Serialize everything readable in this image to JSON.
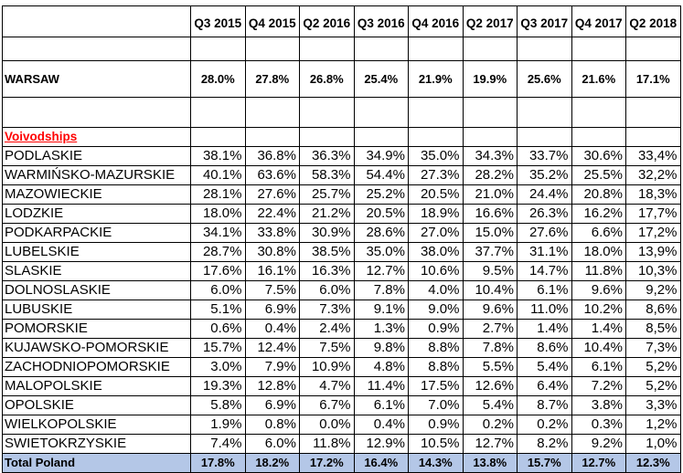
{
  "columns": [
    "Q3 2015",
    "Q4 2015",
    "Q2 2016",
    "Q3 2016",
    "Q4 2016",
    "Q2 2017",
    "Q3 2017",
    "Q4 2017",
    "Q2 2018"
  ],
  "warsaw": {
    "label": "WARSAW",
    "values": [
      "28.0%",
      "27.8%",
      "26.8%",
      "25.4%",
      "21.9%",
      "19.9%",
      "25.6%",
      "21.6%",
      "17.1%"
    ]
  },
  "voivodships_label": "Voivodships",
  "rows": [
    {
      "name": "PODLASKIE",
      "values": [
        "38.1%",
        "36.8%",
        "36.3%",
        "34.9%",
        "35.0%",
        "34.3%",
        "33.7%",
        "30.6%",
        "33,4%"
      ]
    },
    {
      "name": "WARMIŃSKO-MAZURSKIE",
      "values": [
        "40.1%",
        "63.6%",
        "58.3%",
        "54.4%",
        "27.3%",
        "28.2%",
        "35.2%",
        "25.5%",
        "32,2%"
      ]
    },
    {
      "name": "MAZOWIECKIE",
      "values": [
        "28.1%",
        "27.6%",
        "25.7%",
        "25.2%",
        "20.5%",
        "21.0%",
        "24.4%",
        "20.8%",
        "18,3%"
      ]
    },
    {
      "name": "LODZKIE",
      "values": [
        "18.0%",
        "22.4%",
        "21.2%",
        "20.5%",
        "18.9%",
        "16.6%",
        "26.3%",
        "16.2%",
        "17,7%"
      ]
    },
    {
      "name": "PODKARPACKIE",
      "values": [
        "34.1%",
        "33.8%",
        "30.9%",
        "28.6%",
        "27.0%",
        "15.0%",
        "27.6%",
        "6.6%",
        "17,2%"
      ]
    },
    {
      "name": "LUBELSKIE",
      "values": [
        "28.7%",
        "30.8%",
        "38.5%",
        "35.0%",
        "38.0%",
        "37.7%",
        "31.1%",
        "18.0%",
        "13,9%"
      ]
    },
    {
      "name": "SLASKIE",
      "values": [
        "17.6%",
        "16.1%",
        "16.3%",
        "12.7%",
        "10.6%",
        "9.5%",
        "14.7%",
        "11.8%",
        "10,3%"
      ]
    },
    {
      "name": "DOLNOSLASKIE",
      "values": [
        "6.0%",
        "7.5%",
        "6.0%",
        "7.8%",
        "4.0%",
        "10.4%",
        "6.1%",
        "9.6%",
        "9,2%"
      ]
    },
    {
      "name": "LUBUSKIE",
      "values": [
        "5.1%",
        "6.9%",
        "7.3%",
        "9.1%",
        "9.0%",
        "9.6%",
        "11.0%",
        "10.2%",
        "8,6%"
      ]
    },
    {
      "name": "POMORSKIE",
      "values": [
        "0.6%",
        "0.4%",
        "2.4%",
        "1.3%",
        "0.9%",
        "2.7%",
        "1.4%",
        "1.4%",
        "8,5%"
      ]
    },
    {
      "name": "KUJAWSKO-POMORSKIE",
      "values": [
        "15.7%",
        "12.4%",
        "7.5%",
        "9.8%",
        "8.8%",
        "7.8%",
        "8.6%",
        "10.4%",
        "7,3%"
      ]
    },
    {
      "name": "ZACHODNIOPOMORSKIE",
      "values": [
        "3.0%",
        "7.9%",
        "10.9%",
        "4.8%",
        "8.8%",
        "5.5%",
        "5.4%",
        "6.1%",
        "5,2%"
      ]
    },
    {
      "name": "MALOPOLSKIE",
      "values": [
        "19.3%",
        "12.8%",
        "4.7%",
        "11.4%",
        "17.5%",
        "12.6%",
        "6.4%",
        "7.2%",
        "5,2%"
      ]
    },
    {
      "name": "OPOLSKIE",
      "values": [
        "5.8%",
        "6.9%",
        "6.7%",
        "6.1%",
        "7.0%",
        "5.4%",
        "8.7%",
        "3.8%",
        "3,3%"
      ]
    },
    {
      "name": "WIELKOPOLSKIE",
      "values": [
        "1.9%",
        "0.8%",
        "0.0%",
        "0.4%",
        "0.9%",
        "0.2%",
        "0.2%",
        "0.3%",
        "1,2%"
      ]
    },
    {
      "name": "SWIETOKRZYSKIE",
      "values": [
        "7.4%",
        "6.0%",
        "11.8%",
        "12.9%",
        "10.5%",
        "12.7%",
        "8.2%",
        "9.2%",
        "1,0%"
      ]
    }
  ],
  "total": {
    "label": "Total Poland",
    "values": [
      "17.8%",
      "18.2%",
      "17.2%",
      "16.4%",
      "14.3%",
      "13.8%",
      "15.7%",
      "12.7%",
      "12.3%"
    ]
  },
  "colors": {
    "total_row_bg": "#b4c7e7",
    "voivodships_label": "#ff0000"
  }
}
